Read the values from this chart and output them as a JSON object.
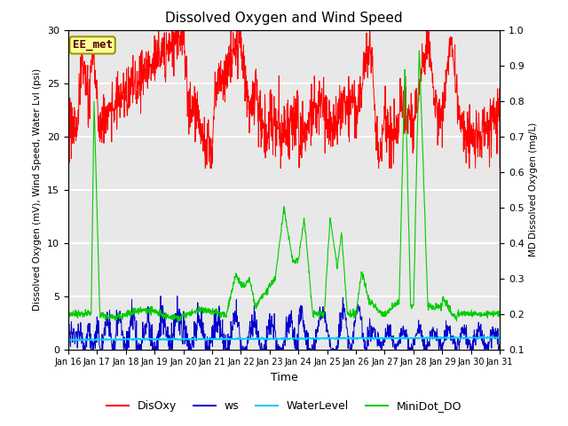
{
  "title": "Dissolved Oxygen and Wind Speed",
  "xlabel": "Time",
  "ylabel_left": "Dissolved Oxygen (mV), Wind Speed, Water Lvl (psi)",
  "ylabel_right": "MD Dissolved Oxygen (mg/L)",
  "xlim": [
    0,
    15
  ],
  "ylim_left": [
    0,
    30
  ],
  "ylim_right": [
    0.1,
    1.0
  ],
  "annotation_text": "EE_met",
  "annotation_box_color": "#FFFF99",
  "annotation_box_edge": "#999900",
  "bg_color": "#E8E8E8",
  "grid_color": "#FFFFFF",
  "xtick_labels": [
    "Jan 16",
    "Jan 17",
    "Jan 18",
    "Jan 19",
    "Jan 20",
    "Jan 21",
    "Jan 22",
    "Jan 23",
    "Jan 24",
    "Jan 25",
    "Jan 26",
    "Jan 27",
    "Jan 28",
    "Jan 29",
    "Jan 30",
    "Jan 31"
  ],
  "ytick_left": [
    0,
    5,
    10,
    15,
    20,
    25,
    30
  ],
  "ytick_right": [
    0.1,
    0.2,
    0.3,
    0.4,
    0.5,
    0.6,
    0.7,
    0.8,
    0.9,
    1.0
  ],
  "legend_items": [
    {
      "label": "DisOxy",
      "color": "#FF0000",
      "linestyle": "-"
    },
    {
      "label": "ws",
      "color": "#0000CC",
      "linestyle": "-"
    },
    {
      "label": "WaterLevel",
      "color": "#00CCFF",
      "linestyle": "-"
    },
    {
      "label": "MiniDot_DO",
      "color": "#00CC00",
      "linestyle": "-"
    }
  ]
}
